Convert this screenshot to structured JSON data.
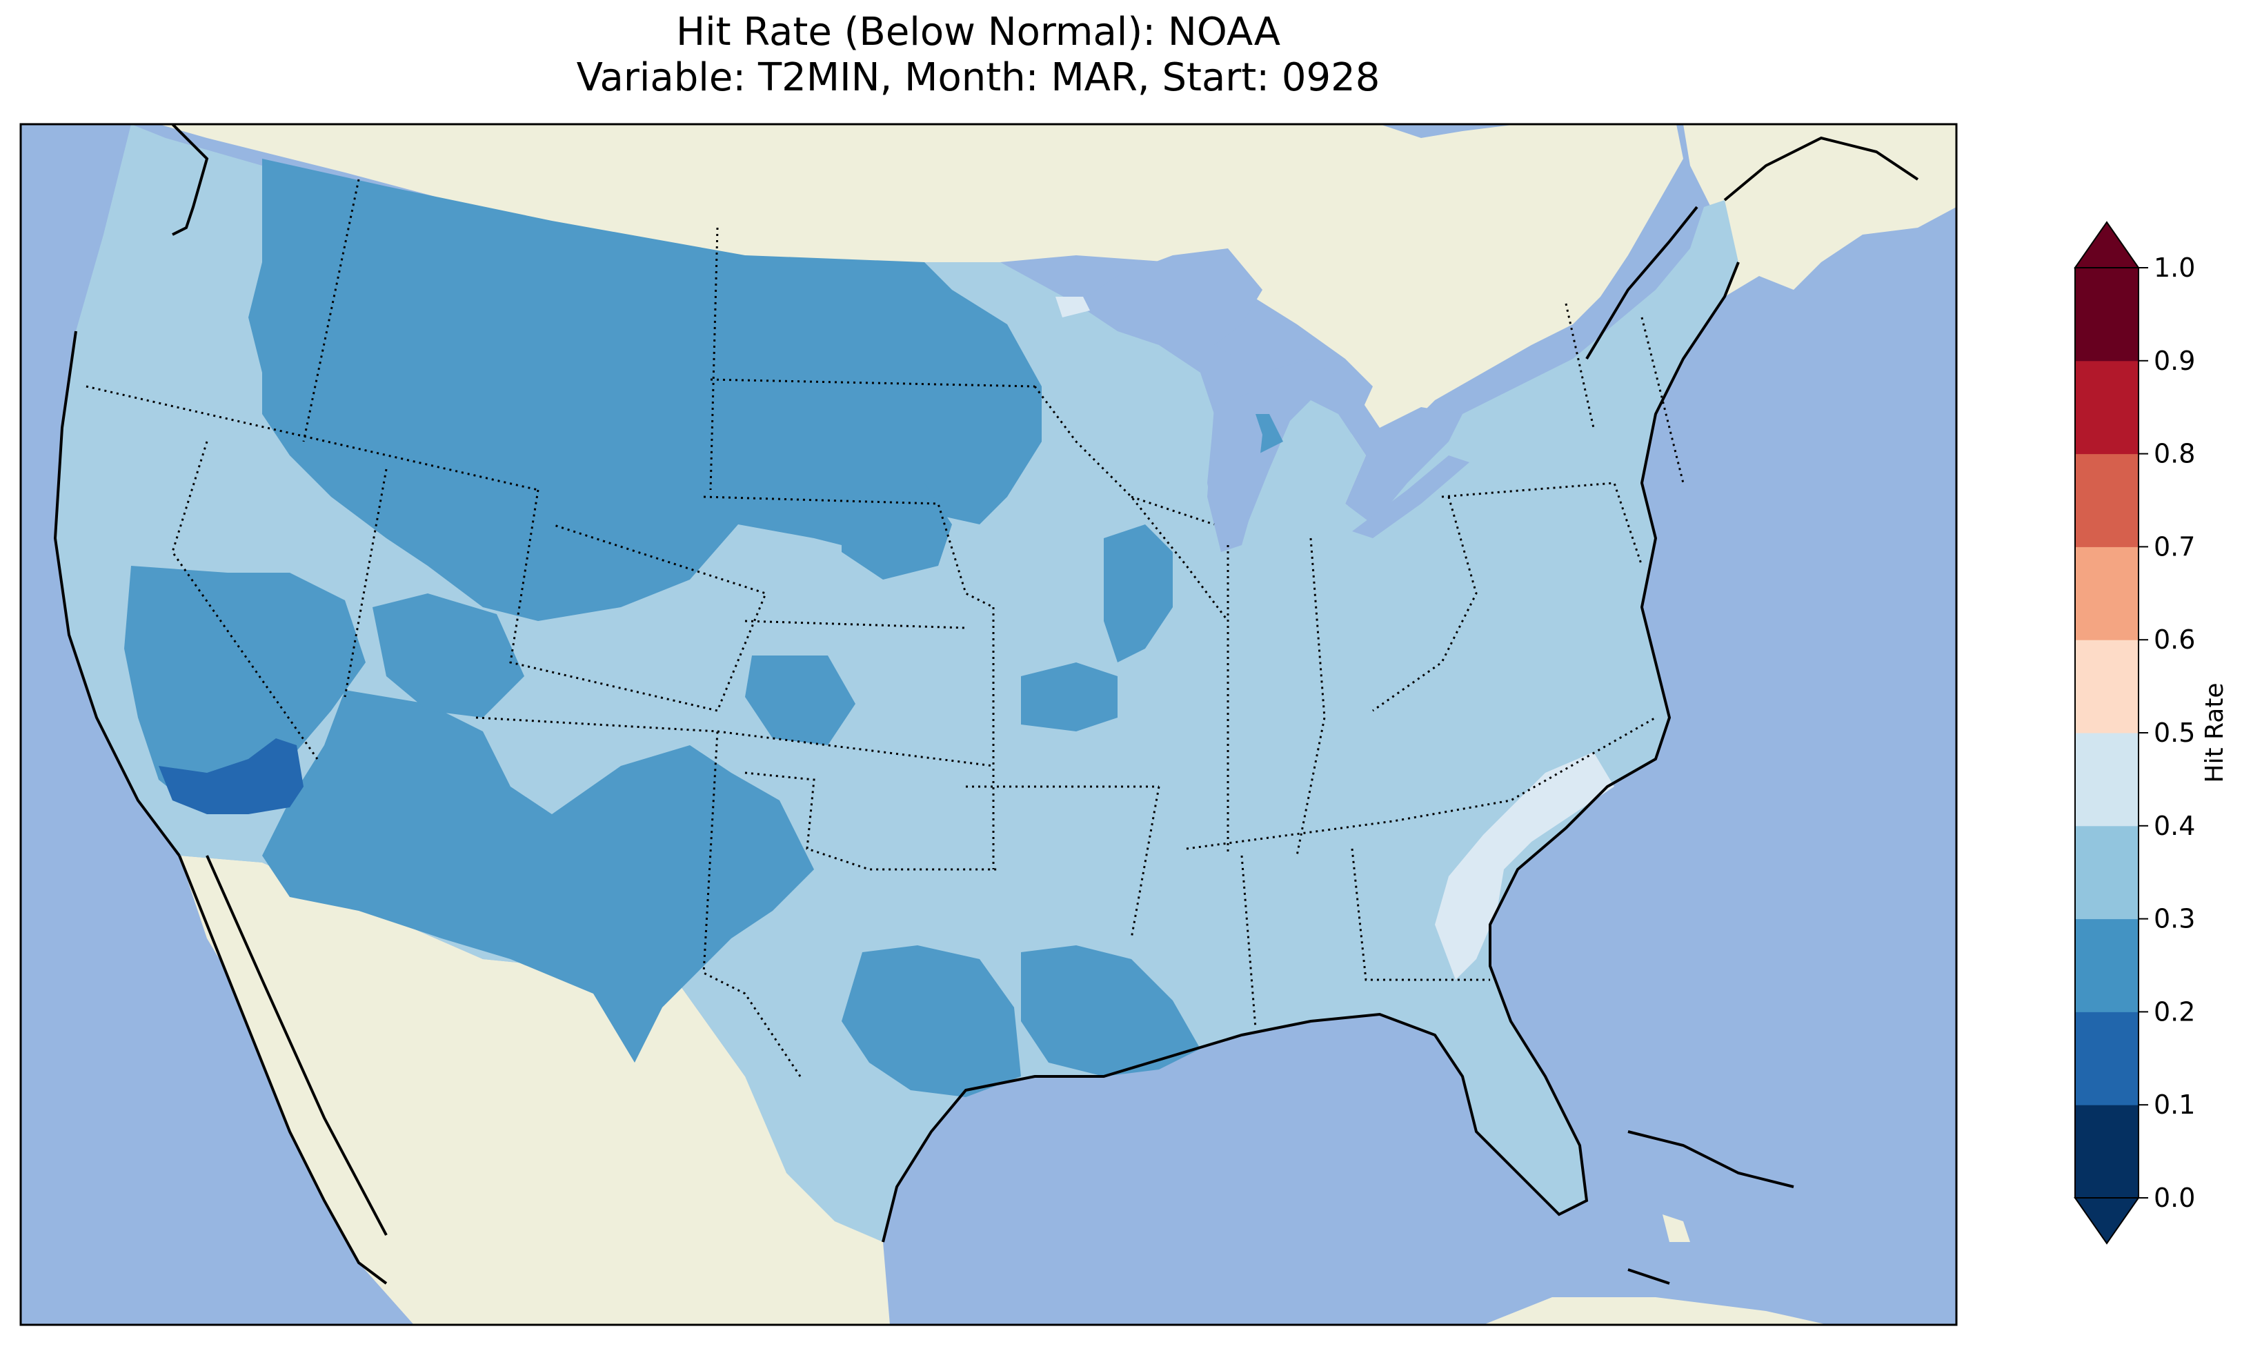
{
  "title": {
    "line1": "Hit Rate (Below Normal): NOAA",
    "line2": "Variable: T2MIN, Month: MAR, Start: 0928"
  },
  "colors": {
    "ocean": "#97b6e1",
    "land": "#efefdb",
    "border": "#000000"
  },
  "colorbar": {
    "label": "Hit Rate",
    "extend": "both",
    "ticks": [
      "0.0",
      "0.1",
      "0.2",
      "0.3",
      "0.4",
      "0.5",
      "0.6",
      "0.7",
      "0.8",
      "0.9",
      "1.0"
    ],
    "bins": [
      {
        "range": "0.0-0.1",
        "color": "#053061"
      },
      {
        "range": "0.1-0.2",
        "color": "#2166ac"
      },
      {
        "range": "0.2-0.3",
        "color": "#4393c3"
      },
      {
        "range": "0.3-0.4",
        "color": "#92c5de"
      },
      {
        "range": "0.4-0.5",
        "color": "#d1e5f0"
      },
      {
        "range": "0.5-0.6",
        "color": "#fddbc7"
      },
      {
        "range": "0.6-0.7",
        "color": "#f4a582"
      },
      {
        "range": "0.7-0.8",
        "color": "#d6604d"
      },
      {
        "range": "0.8-0.9",
        "color": "#b2182b"
      },
      {
        "range": "0.9-1.0",
        "color": "#67001f"
      }
    ]
  },
  "map": {
    "projection": "lambert-conformal",
    "region": "CONUS",
    "dominant_bin": "0.3-0.4",
    "regions": [
      {
        "name": "northern-rockies-plains",
        "bin": "0.2-0.3"
      },
      {
        "name": "great-basin-southwest",
        "bin": "0.2-0.3"
      },
      {
        "name": "southern-california-desert",
        "bin": "0.1-0.2"
      },
      {
        "name": "new-mexico-west-texas",
        "bin": "0.2-0.3"
      },
      {
        "name": "lower-mississippi-valley",
        "bin": "0.2-0.3"
      },
      {
        "name": "carolinas-coast",
        "bin": "0.4-0.5"
      },
      {
        "name": "eastern-us",
        "bin": "0.3-0.4"
      }
    ]
  }
}
